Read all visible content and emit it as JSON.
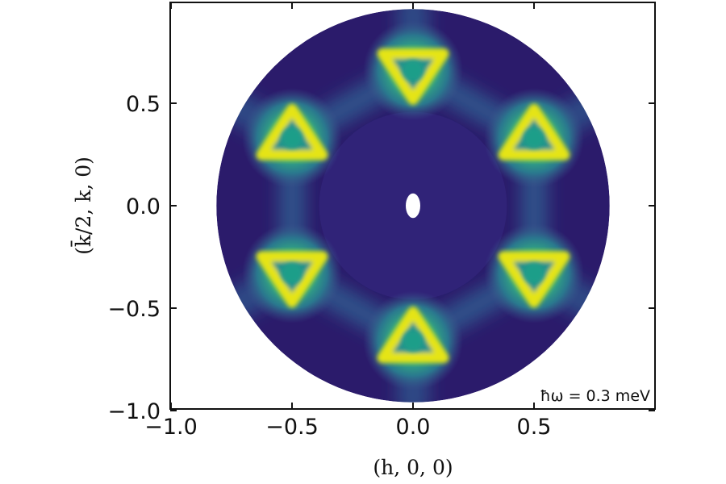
{
  "chart_data": {
    "type": "heatmap",
    "title": "",
    "xlabel": "(h, 0, 0)",
    "ylabel": "(k̄/2, k, 0)",
    "xlim": [
      -1.0,
      1.0
    ],
    "ylim": [
      -1.0,
      1.0
    ],
    "x_ticks": [
      -1.0,
      -0.5,
      0.0,
      0.5
    ],
    "y_ticks": [
      -1.0,
      -0.5,
      0.0,
      0.5
    ],
    "x_tick_labels": [
      "−1.0",
      "−0.5",
      "0.0",
      "0.5"
    ],
    "y_tick_labels": [
      "−1.0",
      "−0.5",
      "0.0",
      "0.5"
    ],
    "annotation": "ħω = 0.3 meV",
    "colormap": "viridis",
    "detector_radius": 0.88,
    "masked_center": {
      "x": 0.0,
      "y": 0.0,
      "rx": 0.03,
      "ry": 0.06
    },
    "dark_ring_radius": 0.42,
    "intensity_peaks": [
      {
        "x": 0.0,
        "y": 0.66,
        "orientation": "down"
      },
      {
        "x": 0.0,
        "y": -0.66,
        "orientation": "up"
      },
      {
        "x": -0.5,
        "y": 0.33,
        "orientation": "up"
      },
      {
        "x": 0.5,
        "y": 0.33,
        "orientation": "up"
      },
      {
        "x": -0.5,
        "y": -0.33,
        "orientation": "down"
      },
      {
        "x": 0.5,
        "y": -0.33,
        "orientation": "down"
      }
    ],
    "grid": false
  },
  "colors": {
    "background": "#2b1b6b",
    "low": "#3a2a85",
    "mid": "#21918c",
    "high": "#e5e419"
  }
}
